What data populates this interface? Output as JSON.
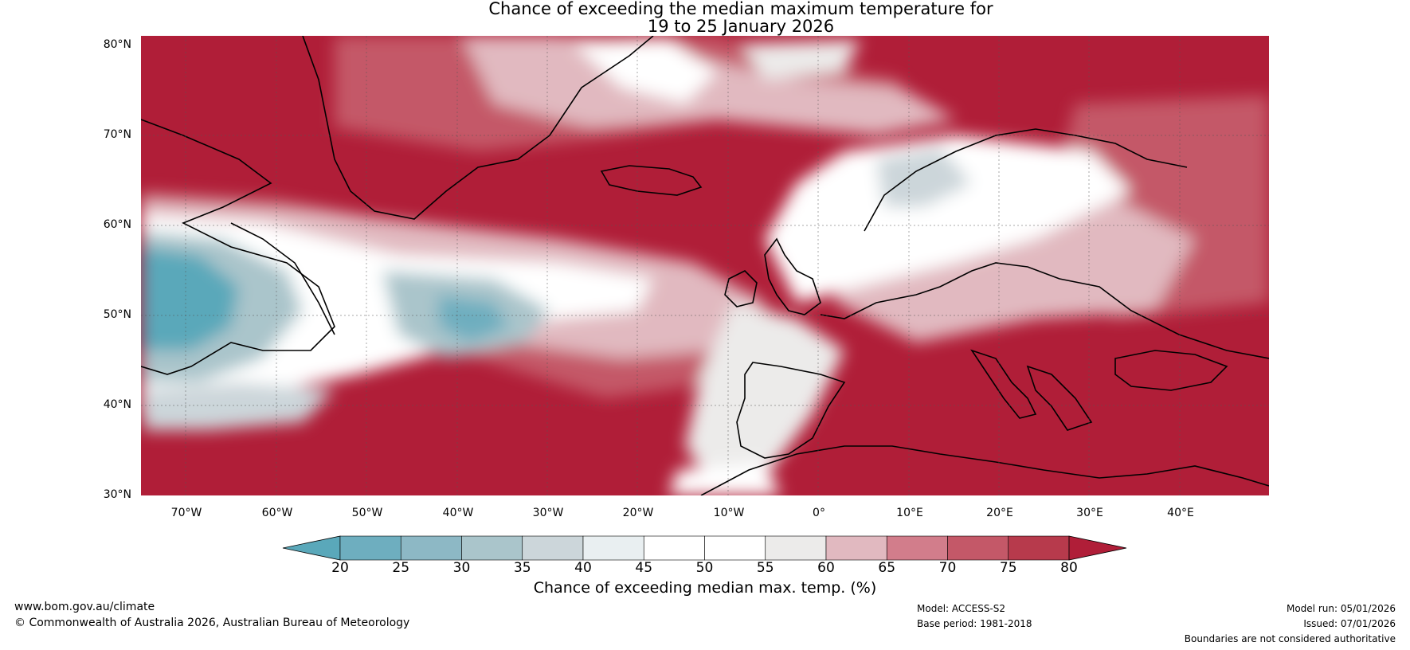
{
  "title": {
    "line1": "Chance of exceeding the median maximum temperature for",
    "line2": "19 to 25 January 2026"
  },
  "map": {
    "lat_labels": [
      "80°N",
      "70°N",
      "60°N",
      "50°N",
      "40°N",
      "30°N"
    ],
    "lat_values": [
      80,
      70,
      60,
      50,
      40,
      30
    ],
    "lon_labels": [
      "70°W",
      "60°W",
      "50°W",
      "40°W",
      "30°W",
      "20°W",
      "10°W",
      "0°",
      "10°E",
      "20°E",
      "30°E",
      "40°E"
    ],
    "lon_values": [
      -70,
      -60,
      -50,
      -40,
      -30,
      -20,
      -10,
      0,
      10,
      20,
      30,
      40
    ],
    "extent": {
      "lon_min": -75,
      "lon_max": 50,
      "lat_min": 30,
      "lat_max": 81
    }
  },
  "colorbar": {
    "ticks": [
      "20",
      "25",
      "30",
      "35",
      "40",
      "45",
      "50",
      "55",
      "60",
      "65",
      "70",
      "75",
      "80"
    ],
    "colors": [
      "#5aa8ba",
      "#6eaebf",
      "#8db8c5",
      "#aac5cb",
      "#ccd6da",
      "#e9eff1",
      "#ffffff",
      "#ffffff",
      "#ecebea",
      "#e1b9c0",
      "#d27d8b",
      "#c45868",
      "#b73a4c",
      "#b01e38"
    ],
    "label": "Chance of exceeding median max. temp. (%)"
  },
  "footer": {
    "website": "www.bom.gov.au/climate",
    "copyright": "© Commonwealth of Australia 2026, Australian Bureau of Meteorology",
    "model": "Model: ACCESS-S2",
    "base_period": "Base period: 1981-2018",
    "model_run": "Model run: 05/01/2026",
    "issued": "Issued: 07/01/2026",
    "disclaimer": "Boundaries are not considered authoritative"
  },
  "palette": {
    "hot": "#b01e38",
    "warm": "#c45868",
    "light_warm": "#e1b9c0",
    "neutral": "#ffffff",
    "cool": "#aac5cb",
    "cold": "#5aa8ba"
  }
}
